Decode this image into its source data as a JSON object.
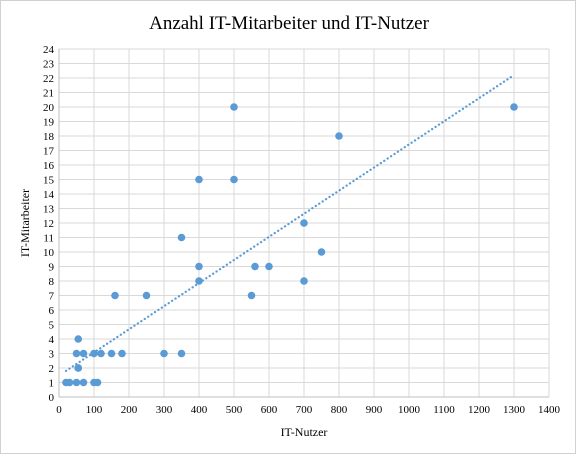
{
  "chart_data": {
    "type": "scatter",
    "title": "Anzahl  IT-Mitarbeiter  und IT-Nutzer",
    "xlabel": "IT-Nutzer",
    "ylabel": "IT-Mitarbeiter",
    "xlim": [
      0,
      1400
    ],
    "ylim": [
      0,
      24
    ],
    "x_ticks": [
      0,
      100,
      200,
      300,
      400,
      500,
      600,
      700,
      800,
      900,
      1000,
      1100,
      1200,
      1300,
      1400
    ],
    "y_ticks": [
      0,
      1,
      2,
      3,
      4,
      5,
      6,
      7,
      8,
      9,
      10,
      11,
      12,
      13,
      14,
      15,
      16,
      17,
      18,
      19,
      20,
      21,
      22,
      23,
      24
    ],
    "grid": true,
    "legend": "none",
    "colors": {
      "points": "#5b9bd5",
      "trendline": "#5b9bd5"
    },
    "points": [
      {
        "x": 20,
        "y": 1
      },
      {
        "x": 30,
        "y": 1
      },
      {
        "x": 50,
        "y": 1
      },
      {
        "x": 70,
        "y": 1
      },
      {
        "x": 100,
        "y": 1
      },
      {
        "x": 110,
        "y": 1
      },
      {
        "x": 55,
        "y": 2
      },
      {
        "x": 55,
        "y": 2
      },
      {
        "x": 50,
        "y": 3
      },
      {
        "x": 70,
        "y": 3
      },
      {
        "x": 100,
        "y": 3
      },
      {
        "x": 120,
        "y": 3
      },
      {
        "x": 150,
        "y": 3
      },
      {
        "x": 180,
        "y": 3
      },
      {
        "x": 300,
        "y": 3
      },
      {
        "x": 350,
        "y": 3
      },
      {
        "x": 55,
        "y": 4
      },
      {
        "x": 160,
        "y": 7
      },
      {
        "x": 250,
        "y": 7
      },
      {
        "x": 550,
        "y": 7
      },
      {
        "x": 400,
        "y": 8
      },
      {
        "x": 700,
        "y": 8
      },
      {
        "x": 400,
        "y": 9
      },
      {
        "x": 560,
        "y": 9
      },
      {
        "x": 600,
        "y": 9
      },
      {
        "x": 750,
        "y": 10
      },
      {
        "x": 350,
        "y": 11
      },
      {
        "x": 700,
        "y": 12
      },
      {
        "x": 400,
        "y": 15
      },
      {
        "x": 500,
        "y": 15
      },
      {
        "x": 800,
        "y": 18
      },
      {
        "x": 500,
        "y": 20
      },
      {
        "x": 1300,
        "y": 20
      }
    ],
    "trendline": {
      "type": "linear",
      "x": [
        20,
        1300
      ],
      "y": [
        1.8,
        22.2
      ],
      "style": "dotted"
    }
  }
}
